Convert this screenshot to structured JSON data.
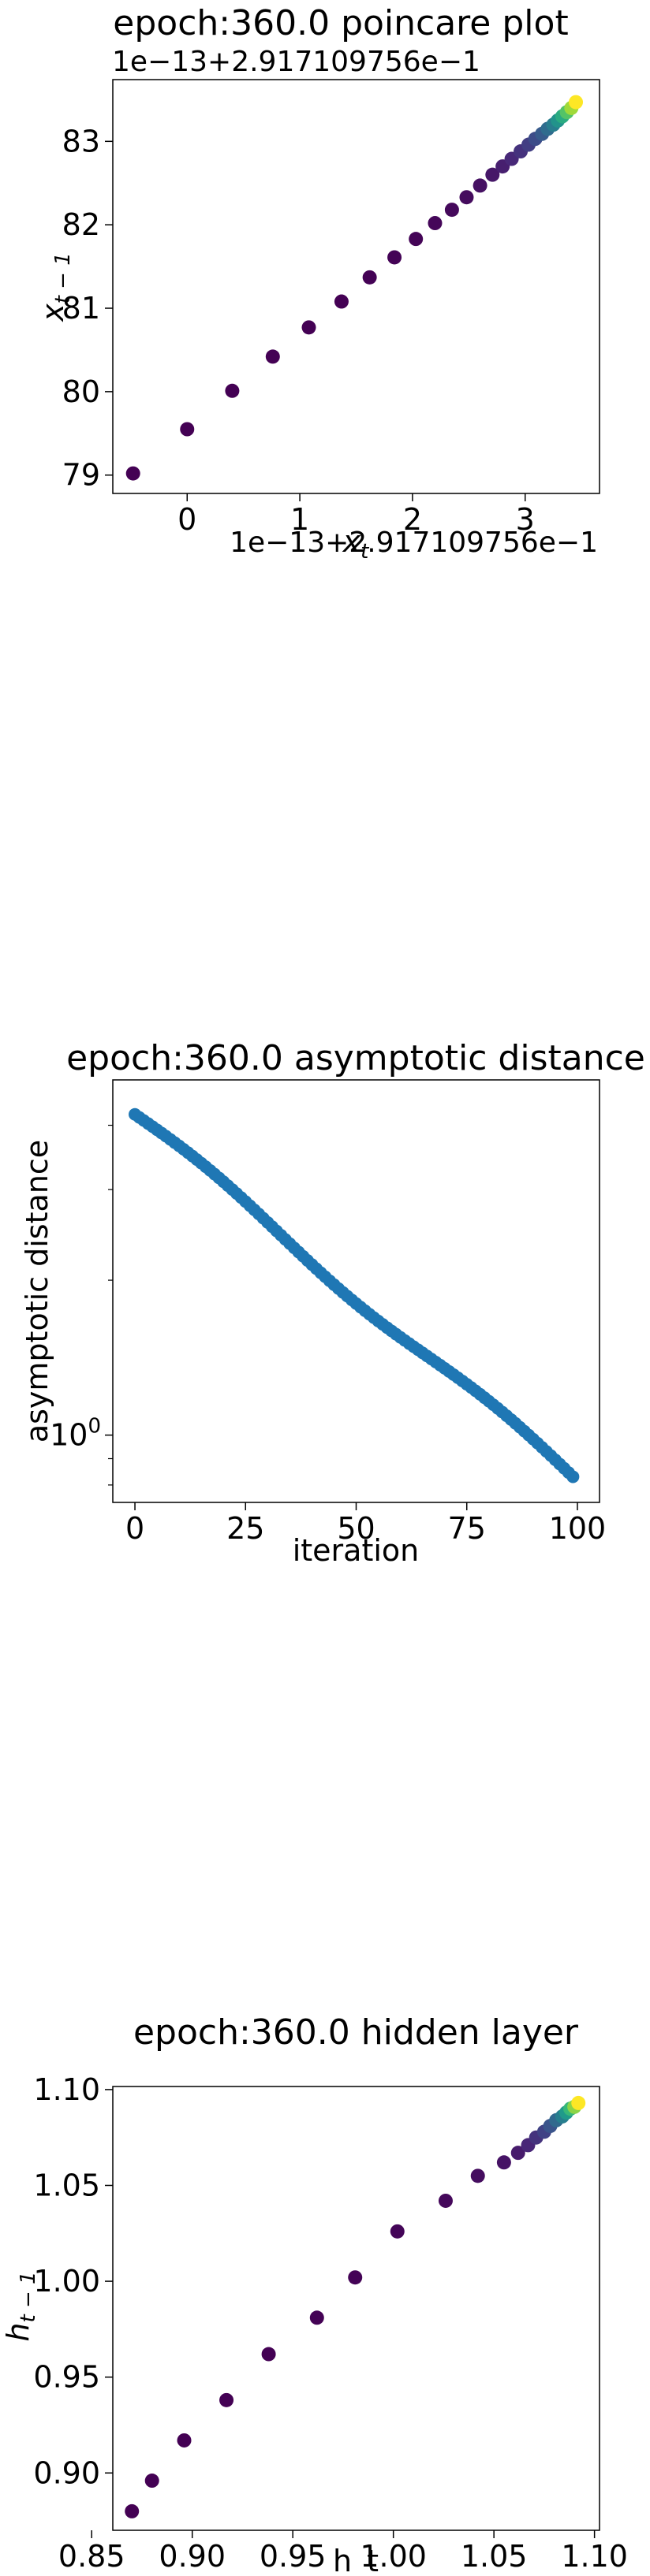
{
  "chart_data": [
    {
      "type": "scatter",
      "title": "epoch:360.0 poincare plot",
      "xlabel_base": "x",
      "xlabel_sub": "t",
      "ylabel_base": "x",
      "ylabel_sub": "t − 1",
      "x_offset_label": "1e−13+2.917109756e−1",
      "y_offset_label": "1e−13+2.917109756e−1",
      "x_ticks": [
        0,
        1,
        2,
        3
      ],
      "y_ticks": [
        79,
        80,
        81,
        82,
        83
      ],
      "xlim": [
        -0.66,
        3.66
      ],
      "ylim": [
        78.78,
        83.74
      ],
      "grid": false,
      "colormap": "viridis",
      "x": [
        -0.48,
        0.0,
        0.4,
        0.76,
        1.08,
        1.37,
        1.62,
        1.84,
        2.03,
        2.2,
        2.35,
        2.48,
        2.6,
        2.71,
        2.8,
        2.88,
        2.96,
        3.03,
        3.09,
        3.15,
        3.2,
        3.25,
        3.29,
        3.33,
        3.37,
        3.41,
        3.45
      ],
      "y": [
        79.02,
        79.55,
        80.01,
        80.42,
        80.77,
        81.08,
        81.37,
        81.61,
        81.83,
        82.02,
        82.18,
        82.33,
        82.47,
        82.6,
        82.7,
        82.79,
        82.88,
        82.96,
        83.03,
        83.09,
        83.15,
        83.2,
        83.25,
        83.3,
        83.35,
        83.4,
        83.47
      ]
    },
    {
      "type": "scatter",
      "title": "epoch:360.0 asymptotic distance",
      "xlabel": "iteration",
      "ylabel": "asymptotic distance",
      "x_ticks": [
        "0",
        "25",
        "50",
        "75",
        "100"
      ],
      "y_tick_label_base": "10",
      "y_tick_label_exp": "0",
      "xlim": [
        -5,
        105
      ],
      "ylim_log": [
        0.74,
        4.9
      ],
      "yscale": "log",
      "grid": false,
      "color": "#1f77b4",
      "iteration_start": 0,
      "iteration_end": 99,
      "y_start": 4.2,
      "y_end": 0.83
    },
    {
      "type": "scatter",
      "title": "epoch:360.0 hidden layer",
      "xlabel": "h_t",
      "ylabel_base": "h",
      "ylabel_sub": "t − 1",
      "x_ticks": [
        "0.85",
        "0.90",
        "0.95",
        "1.00",
        "1.05",
        "1.10"
      ],
      "y_ticks": [
        "0.90",
        "0.95",
        "1.00",
        "1.05",
        "1.10"
      ],
      "xlim": [
        0.8605,
        1.1025
      ],
      "ylim": [
        0.8701,
        1.1016
      ],
      "grid": false,
      "colormap": "viridis",
      "x": [
        0.87,
        0.88,
        0.896,
        0.917,
        0.938,
        0.962,
        0.981,
        1.002,
        1.026,
        1.042,
        1.055,
        1.062,
        1.067,
        1.071,
        1.075,
        1.078,
        1.081,
        1.084,
        1.086,
        1.088,
        1.09,
        1.092
      ],
      "y": [
        0.88,
        0.896,
        0.917,
        0.938,
        0.962,
        0.981,
        1.002,
        1.026,
        1.042,
        1.055,
        1.062,
        1.067,
        1.071,
        1.075,
        1.078,
        1.081,
        1.084,
        1.086,
        1.088,
        1.09,
        1.091,
        1.093
      ]
    }
  ]
}
